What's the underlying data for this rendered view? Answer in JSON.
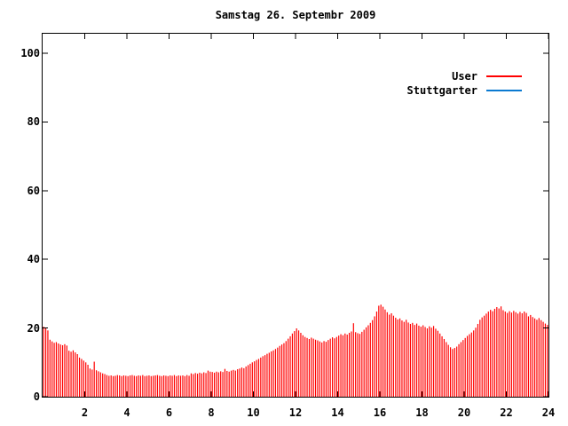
{
  "title": "Samstag 26. Septembr 2009",
  "legend": {
    "position": "top-right",
    "entries": [
      {
        "label": "User",
        "color": "#ff0000"
      },
      {
        "label": "Stuttgarter",
        "color": "#0b7ad1"
      }
    ]
  },
  "colors": {
    "background": "#ffffff",
    "border": "#000000",
    "text": "#000000",
    "user_series": "#ff0000",
    "stuttgarter_series": "#0b7ad1"
  },
  "chart_data": {
    "type": "bar",
    "subtype": "impulses",
    "title": "Samstag 26. Septembr 2009",
    "xlabel": "",
    "ylabel": "",
    "xlim": [
      0,
      24
    ],
    "ylim": [
      0,
      105.7
    ],
    "x_ticks": [
      2,
      4,
      6,
      8,
      10,
      12,
      14,
      16,
      18,
      20,
      22,
      24
    ],
    "y_ticks": [
      0,
      20,
      40,
      60,
      80,
      100
    ],
    "grid": false,
    "legend_position": "top-right",
    "x_unit": "hour of day",
    "x_start": 0.05,
    "x_step": 0.1,
    "series": [
      {
        "name": "User",
        "color": "#ff0000",
        "style": "impulses",
        "values": [
          20.4,
          20.1,
          19.3,
          16.6,
          16.1,
          15.7,
          15.9,
          15.5,
          15.2,
          15.0,
          15.3,
          14.9,
          13.4,
          13.1,
          13.5,
          12.9,
          12.4,
          11.4,
          11.0,
          10.5,
          10.0,
          9.3,
          8.2,
          7.9,
          10.2,
          7.7,
          7.4,
          7.1,
          6.8,
          6.6,
          6.3,
          6.1,
          6.2,
          6.0,
          6.1,
          6.3,
          6.2,
          6.0,
          6.2,
          6.1,
          6.0,
          6.2,
          6.3,
          6.1,
          6.0,
          6.2,
          6.1,
          6.3,
          6.0,
          6.1,
          6.2,
          6.0,
          6.1,
          6.2,
          6.3,
          6.1,
          6.0,
          6.2,
          6.1,
          6.0,
          6.2,
          6.1,
          6.3,
          6.0,
          6.2,
          6.1,
          6.2,
          6.0,
          6.3,
          6.1,
          6.8,
          6.6,
          6.9,
          6.7,
          7.0,
          6.8,
          7.1,
          6.9,
          7.6,
          7.3,
          7.2,
          7.0,
          7.3,
          7.1,
          7.4,
          7.2,
          8.1,
          7.5,
          7.3,
          7.6,
          7.8,
          7.6,
          8.0,
          8.2,
          8.5,
          8.3,
          8.8,
          9.2,
          9.6,
          10.0,
          10.3,
          10.7,
          11.0,
          11.4,
          11.8,
          12.1,
          12.5,
          12.8,
          13.2,
          13.5,
          13.9,
          14.3,
          14.8,
          15.2,
          15.6,
          16.2,
          16.9,
          17.6,
          18.4,
          19.1,
          19.9,
          19.3,
          18.6,
          17.9,
          17.4,
          17.1,
          16.8,
          17.2,
          16.9,
          16.6,
          16.4,
          16.1,
          15.8,
          16.2,
          16.0,
          16.5,
          16.9,
          17.3,
          17.0,
          17.4,
          17.8,
          18.2,
          17.9,
          18.4,
          18.1,
          18.6,
          19.0,
          21.4,
          18.8,
          18.5,
          18.3,
          18.9,
          19.5,
          20.2,
          20.8,
          21.5,
          22.3,
          23.4,
          24.8,
          26.5,
          26.8,
          26.2,
          25.4,
          24.6,
          23.9,
          24.3,
          23.6,
          23.0,
          22.5,
          22.8,
          22.2,
          21.8,
          22.4,
          21.6,
          21.2,
          21.5,
          20.9,
          21.3,
          20.7,
          20.4,
          20.8,
          20.3,
          19.9,
          20.5,
          20.1,
          20.6,
          19.8,
          19.2,
          18.4,
          17.6,
          16.8,
          15.9,
          15.1,
          14.4,
          13.9,
          14.2,
          14.6,
          15.3,
          15.9,
          16.5,
          17.1,
          17.7,
          18.2,
          18.7,
          19.3,
          20.1,
          21.2,
          22.4,
          23.1,
          23.6,
          24.2,
          24.8,
          25.3,
          24.9,
          25.6,
          26.1,
          25.7,
          26.3,
          25.2,
          24.8,
          24.4,
          24.9,
          24.5,
          25.0,
          24.6,
          24.2,
          24.7,
          24.3,
          24.8,
          24.4,
          23.4,
          23.8,
          23.2,
          22.8,
          22.4,
          22.9,
          22.3,
          21.8,
          21.3,
          20.9
        ]
      },
      {
        "name": "Stuttgarter",
        "color": "#0b7ad1",
        "style": "impulses",
        "values": []
      }
    ]
  }
}
